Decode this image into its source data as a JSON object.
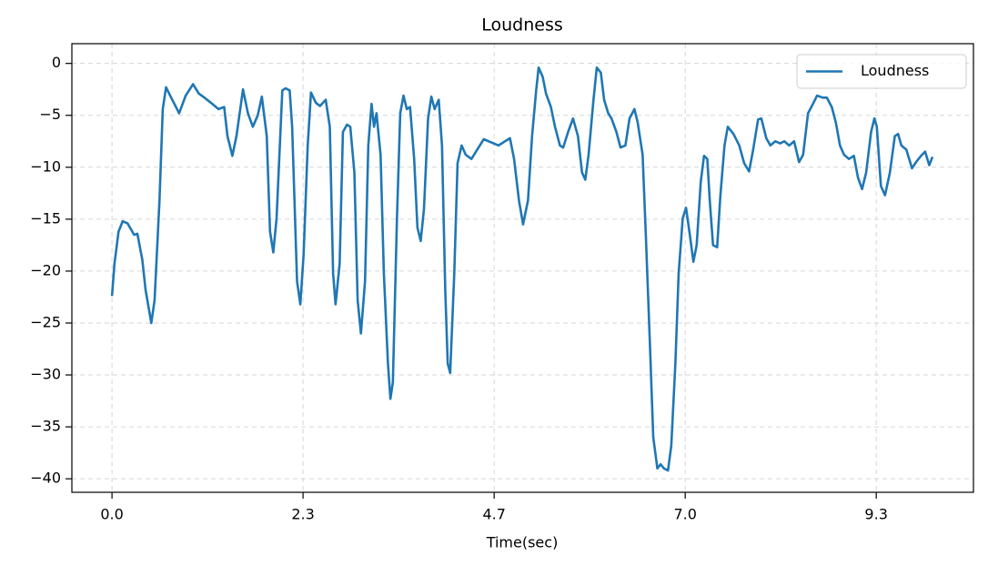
{
  "chart_data": {
    "type": "line",
    "title": "Loudness",
    "xlabel": "Time(sec)",
    "x": [
      0,
      0.03,
      0.08,
      0.13,
      0.19,
      0.27,
      0.31,
      0.37,
      0.41,
      0.48,
      0.52,
      0.58,
      0.62,
      0.66,
      0.71,
      0.82,
      0.9,
      0.99,
      1.06,
      1.13,
      1.21,
      1.3,
      1.37,
      1.41,
      1.47,
      1.52,
      1.6,
      1.66,
      1.72,
      1.78,
      1.83,
      1.89,
      1.93,
      1.97,
      2.01,
      2.08,
      2.12,
      2.17,
      2.2,
      2.26,
      2.3,
      2.34,
      2.39,
      2.43,
      2.49,
      2.54,
      2.61,
      2.66,
      2.7,
      2.73,
      2.78,
      2.82,
      2.87,
      2.91,
      2.96,
      3.0,
      3.04,
      3.09,
      3.13,
      3.17,
      3.2,
      3.23,
      3.28,
      3.32,
      3.37,
      3.4,
      3.43,
      3.48,
      3.52,
      3.56,
      3.6,
      3.64,
      3.69,
      3.73,
      3.77,
      3.81,
      3.86,
      3.9,
      3.94,
      3.99,
      4.03,
      4.07,
      4.1,
      4.13,
      4.18,
      4.22,
      4.27,
      4.32,
      4.39,
      4.46,
      4.54,
      4.63,
      4.72,
      4.8,
      4.86,
      4.91,
      4.97,
      5.02,
      5.08,
      5.13,
      5.18,
      5.21,
      5.26,
      5.3,
      5.36,
      5.41,
      5.47,
      5.51,
      5.57,
      5.63,
      5.69,
      5.74,
      5.78,
      5.82,
      5.88,
      5.92,
      5.97,
      6.01,
      6.06,
      6.1,
      6.16,
      6.21,
      6.27,
      6.32,
      6.38,
      6.42,
      6.48,
      6.52,
      6.57,
      6.61,
      6.66,
      6.7,
      6.74,
      6.79,
      6.83,
      6.88,
      6.92,
      6.97,
      7.01,
      7.06,
      7.1,
      7.14,
      7.19,
      7.23,
      7.27,
      7.3,
      7.34,
      7.39,
      7.43,
      7.48,
      7.52,
      7.59,
      7.66,
      7.72,
      7.78,
      7.83,
      7.89,
      7.93,
      7.99,
      8.04,
      8.1,
      8.16,
      8.21,
      8.27,
      8.33,
      8.39,
      8.44,
      8.5,
      8.56,
      8.61,
      8.68,
      8.73,
      8.79,
      8.84,
      8.89,
      8.94,
      9.0,
      9.06,
      9.11,
      9.16,
      9.21,
      9.27,
      9.31,
      9.34,
      9.39,
      9.44,
      9.5,
      9.56,
      9.6,
      9.64,
      9.7,
      9.77,
      9.82,
      9.88,
      9.93,
      9.98,
      10.02
    ],
    "series": [
      {
        "name": "Loudness",
        "color": "#1f77b4",
        "values": [
          -22.4,
          -19.3,
          -16.2,
          -15.2,
          -15.4,
          -16.5,
          -16.4,
          -18.9,
          -21.8,
          -25,
          -22.8,
          -13.2,
          -4.4,
          -2.3,
          -3.1,
          -4.8,
          -3.1,
          -2.0,
          -2.9,
          -3.3,
          -3.8,
          -4.4,
          -4.2,
          -7,
          -8.9,
          -7,
          -2.5,
          -4.8,
          -6.1,
          -5,
          -3.2,
          -7,
          -16.2,
          -18.2,
          -14.9,
          -2.6,
          -2.4,
          -2.6,
          -6.1,
          -21,
          -23.2,
          -18.4,
          -7.9,
          -2.8,
          -3.8,
          -4.1,
          -3.5,
          -6.1,
          -20.2,
          -23.2,
          -19.3,
          -6.6,
          -5.9,
          -6.1,
          -10.5,
          -22.8,
          -26,
          -21,
          -7.9,
          -3.9,
          -6.1,
          -4.8,
          -8.8,
          -20.2,
          -28.9,
          -32.3,
          -30.7,
          -14.9,
          -4.8,
          -3.1,
          -4.4,
          -4.2,
          -9.2,
          -15.8,
          -17.1,
          -14,
          -5.3,
          -3.2,
          -4.4,
          -3.5,
          -7.9,
          -21.9,
          -28.9,
          -29.8,
          -20.2,
          -9.6,
          -7.9,
          -8.8,
          -9.2,
          -8.3,
          -7.3,
          -7.6,
          -7.9,
          -7.5,
          -7.2,
          -9.2,
          -13.2,
          -15.5,
          -13.2,
          -7,
          -2.6,
          -0.4,
          -1.3,
          -2.9,
          -4.2,
          -6.1,
          -7.9,
          -8.1,
          -6.6,
          -5.3,
          -7,
          -10.5,
          -11.2,
          -8.8,
          -3.5,
          -0.4,
          -0.9,
          -3.5,
          -4.8,
          -5.3,
          -6.6,
          -8.1,
          -7.9,
          -5.3,
          -4.4,
          -5.7,
          -8.8,
          -16.7,
          -27.2,
          -36,
          -39,
          -38.6,
          -39,
          -39.2,
          -36.8,
          -28.9,
          -20.2,
          -14.9,
          -13.9,
          -16.7,
          -19.1,
          -17.5,
          -11.4,
          -8.9,
          -9.2,
          -13.2,
          -17.5,
          -17.7,
          -12.7,
          -7.9,
          -6.1,
          -6.8,
          -7.9,
          -9.6,
          -10.4,
          -8.3,
          -5.4,
          -5.3,
          -7.2,
          -7.9,
          -7.5,
          -7.7,
          -7.5,
          -7.9,
          -7.5,
          -9.5,
          -8.8,
          -4.8,
          -3.9,
          -3.1,
          -3.3,
          -3.3,
          -4.2,
          -5.7,
          -7.9,
          -8.8,
          -9.2,
          -8.9,
          -11,
          -12.1,
          -10.5,
          -6.6,
          -5.3,
          -6.1,
          -11.8,
          -12.7,
          -10.5,
          -7,
          -6.8,
          -7.9,
          -8.3,
          -10.1,
          -9.5,
          -8.9,
          -8.5,
          -9.8,
          -9
        ]
      }
    ],
    "xlim": [
      -0.49,
      10.52
    ],
    "xticks": [
      {
        "value": 0,
        "label": "0.0"
      },
      {
        "value": 2.333,
        "label": "2.3"
      },
      {
        "value": 4.667,
        "label": "4.7"
      },
      {
        "value": 7,
        "label": "7.0"
      },
      {
        "value": 9.333,
        "label": "9.3"
      }
    ],
    "ylim": [
      -41.3,
      1.9
    ],
    "yticks": [
      {
        "value": 0,
        "label": "0"
      },
      {
        "value": -5,
        "label": "−5"
      },
      {
        "value": -10,
        "label": "−10"
      },
      {
        "value": -15,
        "label": "−15"
      },
      {
        "value": -20,
        "label": "−20"
      },
      {
        "value": -25,
        "label": "−25"
      },
      {
        "value": -30,
        "label": "−30"
      },
      {
        "value": -35,
        "label": "−35"
      },
      {
        "value": -40,
        "label": "−40"
      }
    ],
    "grid": true,
    "legend": "upper right"
  }
}
